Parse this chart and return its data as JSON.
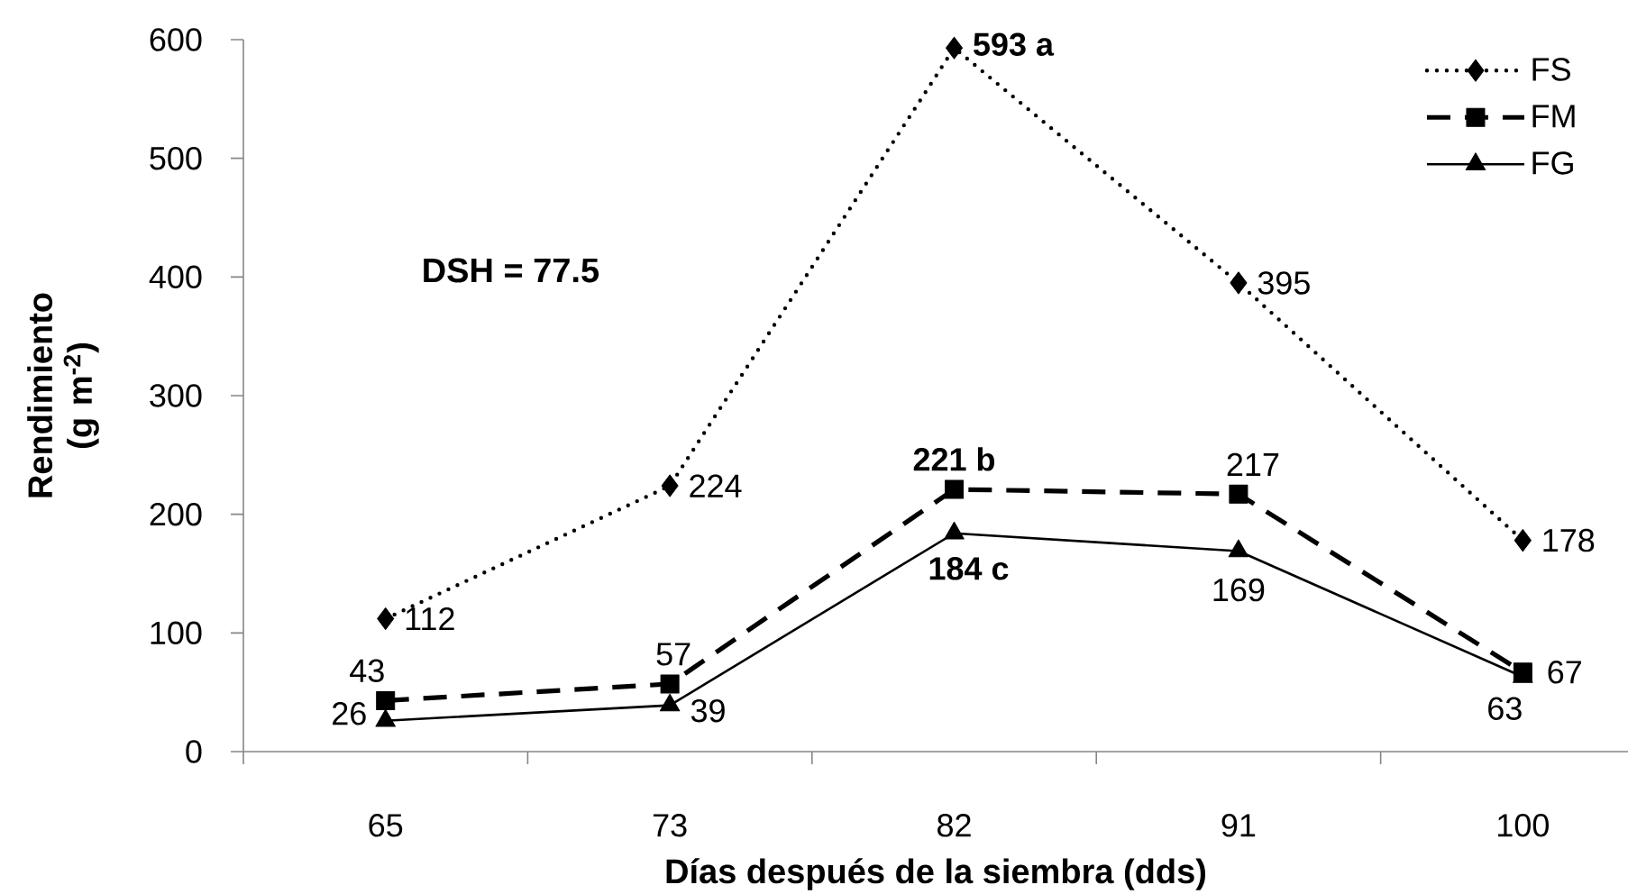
{
  "chart_data": {
    "type": "line",
    "xlabel": "Días después de la siembra (dds)",
    "ylabel": "Rendimiento (g m$^{-2}$)",
    "categories": [
      "65",
      "73",
      "82",
      "91",
      "100"
    ],
    "ylim": [
      0,
      600
    ],
    "yticks": [
      0,
      100,
      200,
      300,
      400,
      500,
      600
    ],
    "legend": "top right",
    "annotations": [
      "DSH = 77.5"
    ],
    "series": [
      {
        "name": "FS",
        "color": "#000000",
        "marker": "diamond",
        "line_style": "dotted",
        "values": [
          112,
          224,
          593,
          395,
          178
        ],
        "value_labels": [
          "112",
          "224",
          "**593 a**",
          "395",
          "178"
        ]
      },
      {
        "name": "FM",
        "color": "#000000",
        "marker": "square",
        "line_style": "dashed",
        "values": [
          43,
          57,
          221,
          217,
          67
        ],
        "value_labels": [
          "43",
          "57",
          "**221 b**",
          "217",
          "67"
        ]
      },
      {
        "name": "FG",
        "color": "#000000",
        "marker": "triangle",
        "line_style": "solid",
        "values": [
          26,
          39,
          184,
          169,
          63
        ],
        "value_labels": [
          "26",
          "39",
          "**184 c**",
          "169",
          "63"
        ]
      }
    ]
  }
}
